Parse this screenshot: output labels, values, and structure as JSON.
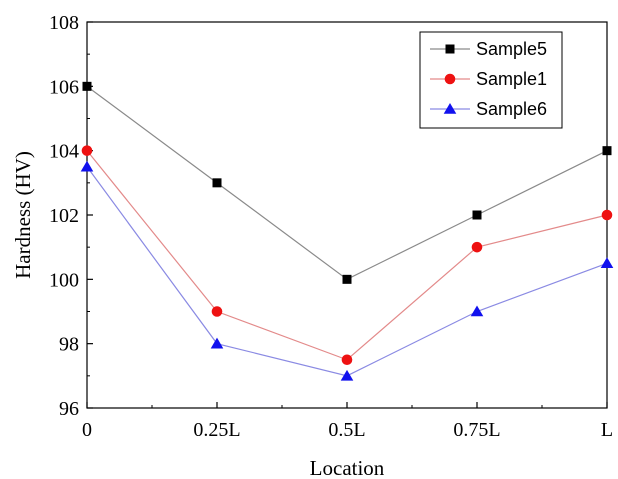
{
  "chart_data": {
    "type": "line",
    "title": "",
    "xlabel": "Location",
    "ylabel": "Hardness (HV)",
    "categories": [
      "0",
      "0.25L",
      "0.5L",
      "0.75L",
      "L"
    ],
    "ylim": [
      96,
      108
    ],
    "yticks": [
      96,
      98,
      100,
      102,
      104,
      106,
      108
    ],
    "yticks_labels": [
      "96",
      "98",
      "100",
      "102",
      "104",
      "106",
      "108"
    ],
    "grid": false,
    "legend_position": "top-right",
    "series": [
      {
        "name": "Sample5",
        "values": [
          106,
          103,
          100,
          102,
          104
        ],
        "marker": "square",
        "marker_color": "#000000",
        "line_color": "#8a8a8a"
      },
      {
        "name": "Sample1",
        "values": [
          104,
          99,
          97.5,
          101,
          102
        ],
        "marker": "circle",
        "marker_color": "#ee1111",
        "line_color": "#e38a8a"
      },
      {
        "name": "Sample6",
        "values": [
          103.5,
          98,
          97,
          99,
          100.5
        ],
        "marker": "triangle",
        "marker_color": "#1111ee",
        "line_color": "#8a8ae3"
      }
    ]
  }
}
